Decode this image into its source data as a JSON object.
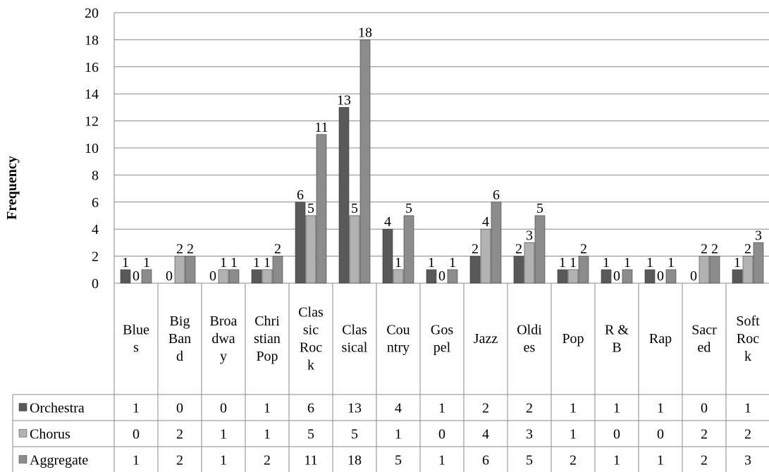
{
  "chart_data": {
    "type": "bar",
    "ylabel": "Frequency",
    "xlabel": "",
    "ylim": [
      0,
      20
    ],
    "yticks": [
      "0",
      "2",
      "4",
      "6",
      "8",
      "10",
      "12",
      "14",
      "16",
      "18",
      "20"
    ],
    "grid": true,
    "categories": [
      [
        "Blue",
        "s"
      ],
      [
        "Big",
        "Ban",
        "d"
      ],
      [
        "Broa",
        "dwa",
        "y"
      ],
      [
        "Chri",
        "stian",
        "Pop"
      ],
      [
        "Clas",
        "sic",
        "Roc",
        "k"
      ],
      [
        "Clas",
        "sical"
      ],
      [
        "Cou",
        "ntry"
      ],
      [
        "Gos",
        "pel"
      ],
      [
        "Jazz"
      ],
      [
        "Oldi",
        "es"
      ],
      [
        "Pop"
      ],
      [
        "R &",
        "B"
      ],
      [
        "Rap"
      ],
      [
        "Sacr",
        "ed"
      ],
      [
        "Soft",
        "Roc",
        "k"
      ]
    ],
    "series": [
      {
        "name": "Orchestra",
        "color": "#595959",
        "values": [
          1,
          0,
          0,
          1,
          6,
          13,
          4,
          1,
          2,
          2,
          1,
          1,
          1,
          0,
          1
        ]
      },
      {
        "name": "Chorus",
        "color": "#b2b2b2",
        "values": [
          0,
          2,
          1,
          1,
          5,
          5,
          1,
          0,
          4,
          3,
          1,
          0,
          0,
          2,
          2
        ]
      },
      {
        "name": "Aggregate",
        "color": "#8c8c8c",
        "values": [
          1,
          2,
          1,
          2,
          11,
          18,
          5,
          1,
          6,
          5,
          2,
          1,
          1,
          2,
          3
        ]
      }
    ]
  }
}
